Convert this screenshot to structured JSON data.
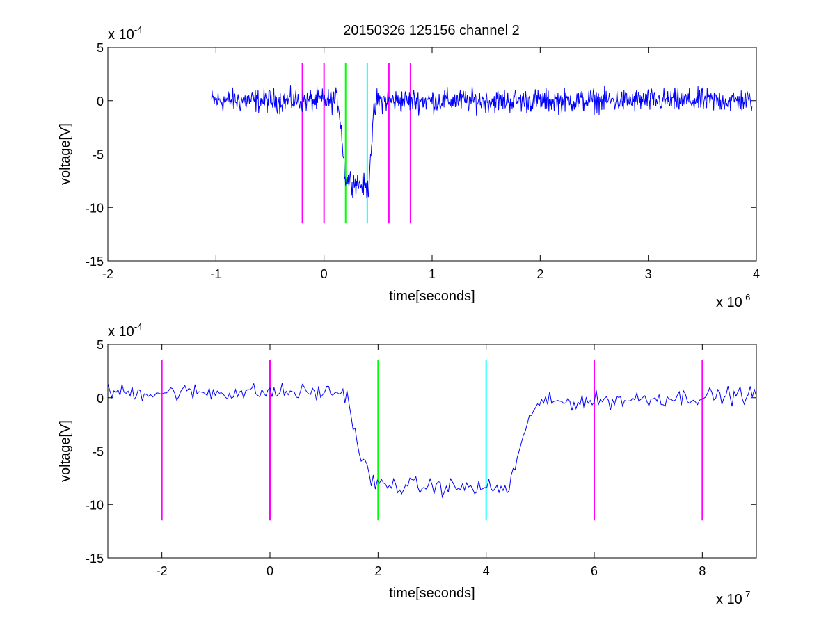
{
  "title": "20150326 125156 channel 2",
  "colors": {
    "signal": "#0000ff",
    "magenta_marker": "#ff00ff",
    "green_marker": "#00ff00",
    "cyan_marker": "#00ffff",
    "axes": "#000000",
    "background": "#ffffff"
  },
  "chart_data": [
    {
      "type": "line",
      "title": "20150326 125156 channel 2",
      "xlabel": "time[seconds]",
      "ylabel": "voltage[V]",
      "x_exponent_label": "x 10",
      "x_exponent_power": "-6",
      "y_exponent_label": "x 10",
      "y_exponent_power": "-4",
      "xlim": [
        -2,
        4
      ],
      "ylim": [
        -15,
        5
      ],
      "xticks": [
        -2,
        -1,
        0,
        1,
        2,
        3,
        4
      ],
      "yticks": [
        -15,
        -10,
        -5,
        0,
        5
      ],
      "grid": false,
      "markers": [
        {
          "x": -0.2,
          "ymin": -11.5,
          "ymax": 3.5,
          "color": "#ff00ff"
        },
        {
          "x": 0.0,
          "ymin": -11.5,
          "ymax": 3.5,
          "color": "#ff00ff"
        },
        {
          "x": 0.2,
          "ymin": -11.5,
          "ymax": 3.5,
          "color": "#00ff00"
        },
        {
          "x": 0.4,
          "ymin": -11.5,
          "ymax": 3.5,
          "color": "#00ffff"
        },
        {
          "x": 0.6,
          "ymin": -11.5,
          "ymax": 3.5,
          "color": "#ff00ff"
        },
        {
          "x": 0.8,
          "ymin": -11.5,
          "ymax": 3.5,
          "color": "#ff00ff"
        }
      ],
      "signal": {
        "color": "#0000ff",
        "x_start": -1.04,
        "x_end": 3.96,
        "baseline": 0.0,
        "noise_amplitude": 1.1,
        "profile": [
          [
            -1.04,
            0.0
          ],
          [
            0.13,
            0.0
          ],
          [
            0.16,
            -2.5
          ],
          [
            0.18,
            -5.5
          ],
          [
            0.2,
            -7.3
          ],
          [
            0.38,
            -8.0
          ],
          [
            0.41,
            -8.5
          ],
          [
            0.43,
            -5.0
          ],
          [
            0.46,
            -1.5
          ],
          [
            0.49,
            0.0
          ],
          [
            3.96,
            0.0
          ]
        ]
      }
    },
    {
      "type": "line",
      "xlabel": "time[seconds]",
      "ylabel": "voltage[V]",
      "x_exponent_label": "x 10",
      "x_exponent_power": "-7",
      "y_exponent_label": "x 10",
      "y_exponent_power": "-4",
      "xlim": [
        -3,
        9
      ],
      "ylim": [
        -15,
        5
      ],
      "xticks": [
        -2,
        0,
        2,
        4,
        6,
        8
      ],
      "yticks": [
        -15,
        -10,
        -5,
        0,
        5
      ],
      "grid": false,
      "markers": [
        {
          "x": -2,
          "ymin": -11.5,
          "ymax": 3.5,
          "color": "#ff00ff"
        },
        {
          "x": 0,
          "ymin": -11.5,
          "ymax": 3.5,
          "color": "#ff00ff"
        },
        {
          "x": 2,
          "ymin": -11.5,
          "ymax": 3.5,
          "color": "#00ff00"
        },
        {
          "x": 4,
          "ymin": -11.5,
          "ymax": 3.5,
          "color": "#00ffff"
        },
        {
          "x": 6,
          "ymin": -11.5,
          "ymax": 3.5,
          "color": "#ff00ff"
        },
        {
          "x": 8,
          "ymin": -11.5,
          "ymax": 3.5,
          "color": "#ff00ff"
        }
      ],
      "signal": {
        "color": "#0000ff",
        "x_start": -3,
        "x_end": 9,
        "baseline": 0.0,
        "noise_amplitude": 0.8,
        "profile": [
          [
            -3,
            0.5
          ],
          [
            1.4,
            0.5
          ],
          [
            1.5,
            -1.5
          ],
          [
            1.65,
            -5.0
          ],
          [
            1.85,
            -7.5
          ],
          [
            2.0,
            -8.2
          ],
          [
            4.3,
            -8.5
          ],
          [
            4.4,
            -8.8
          ],
          [
            4.55,
            -6.0
          ],
          [
            4.75,
            -3.0
          ],
          [
            4.9,
            -0.5
          ],
          [
            9,
            0.3
          ]
        ]
      }
    }
  ]
}
